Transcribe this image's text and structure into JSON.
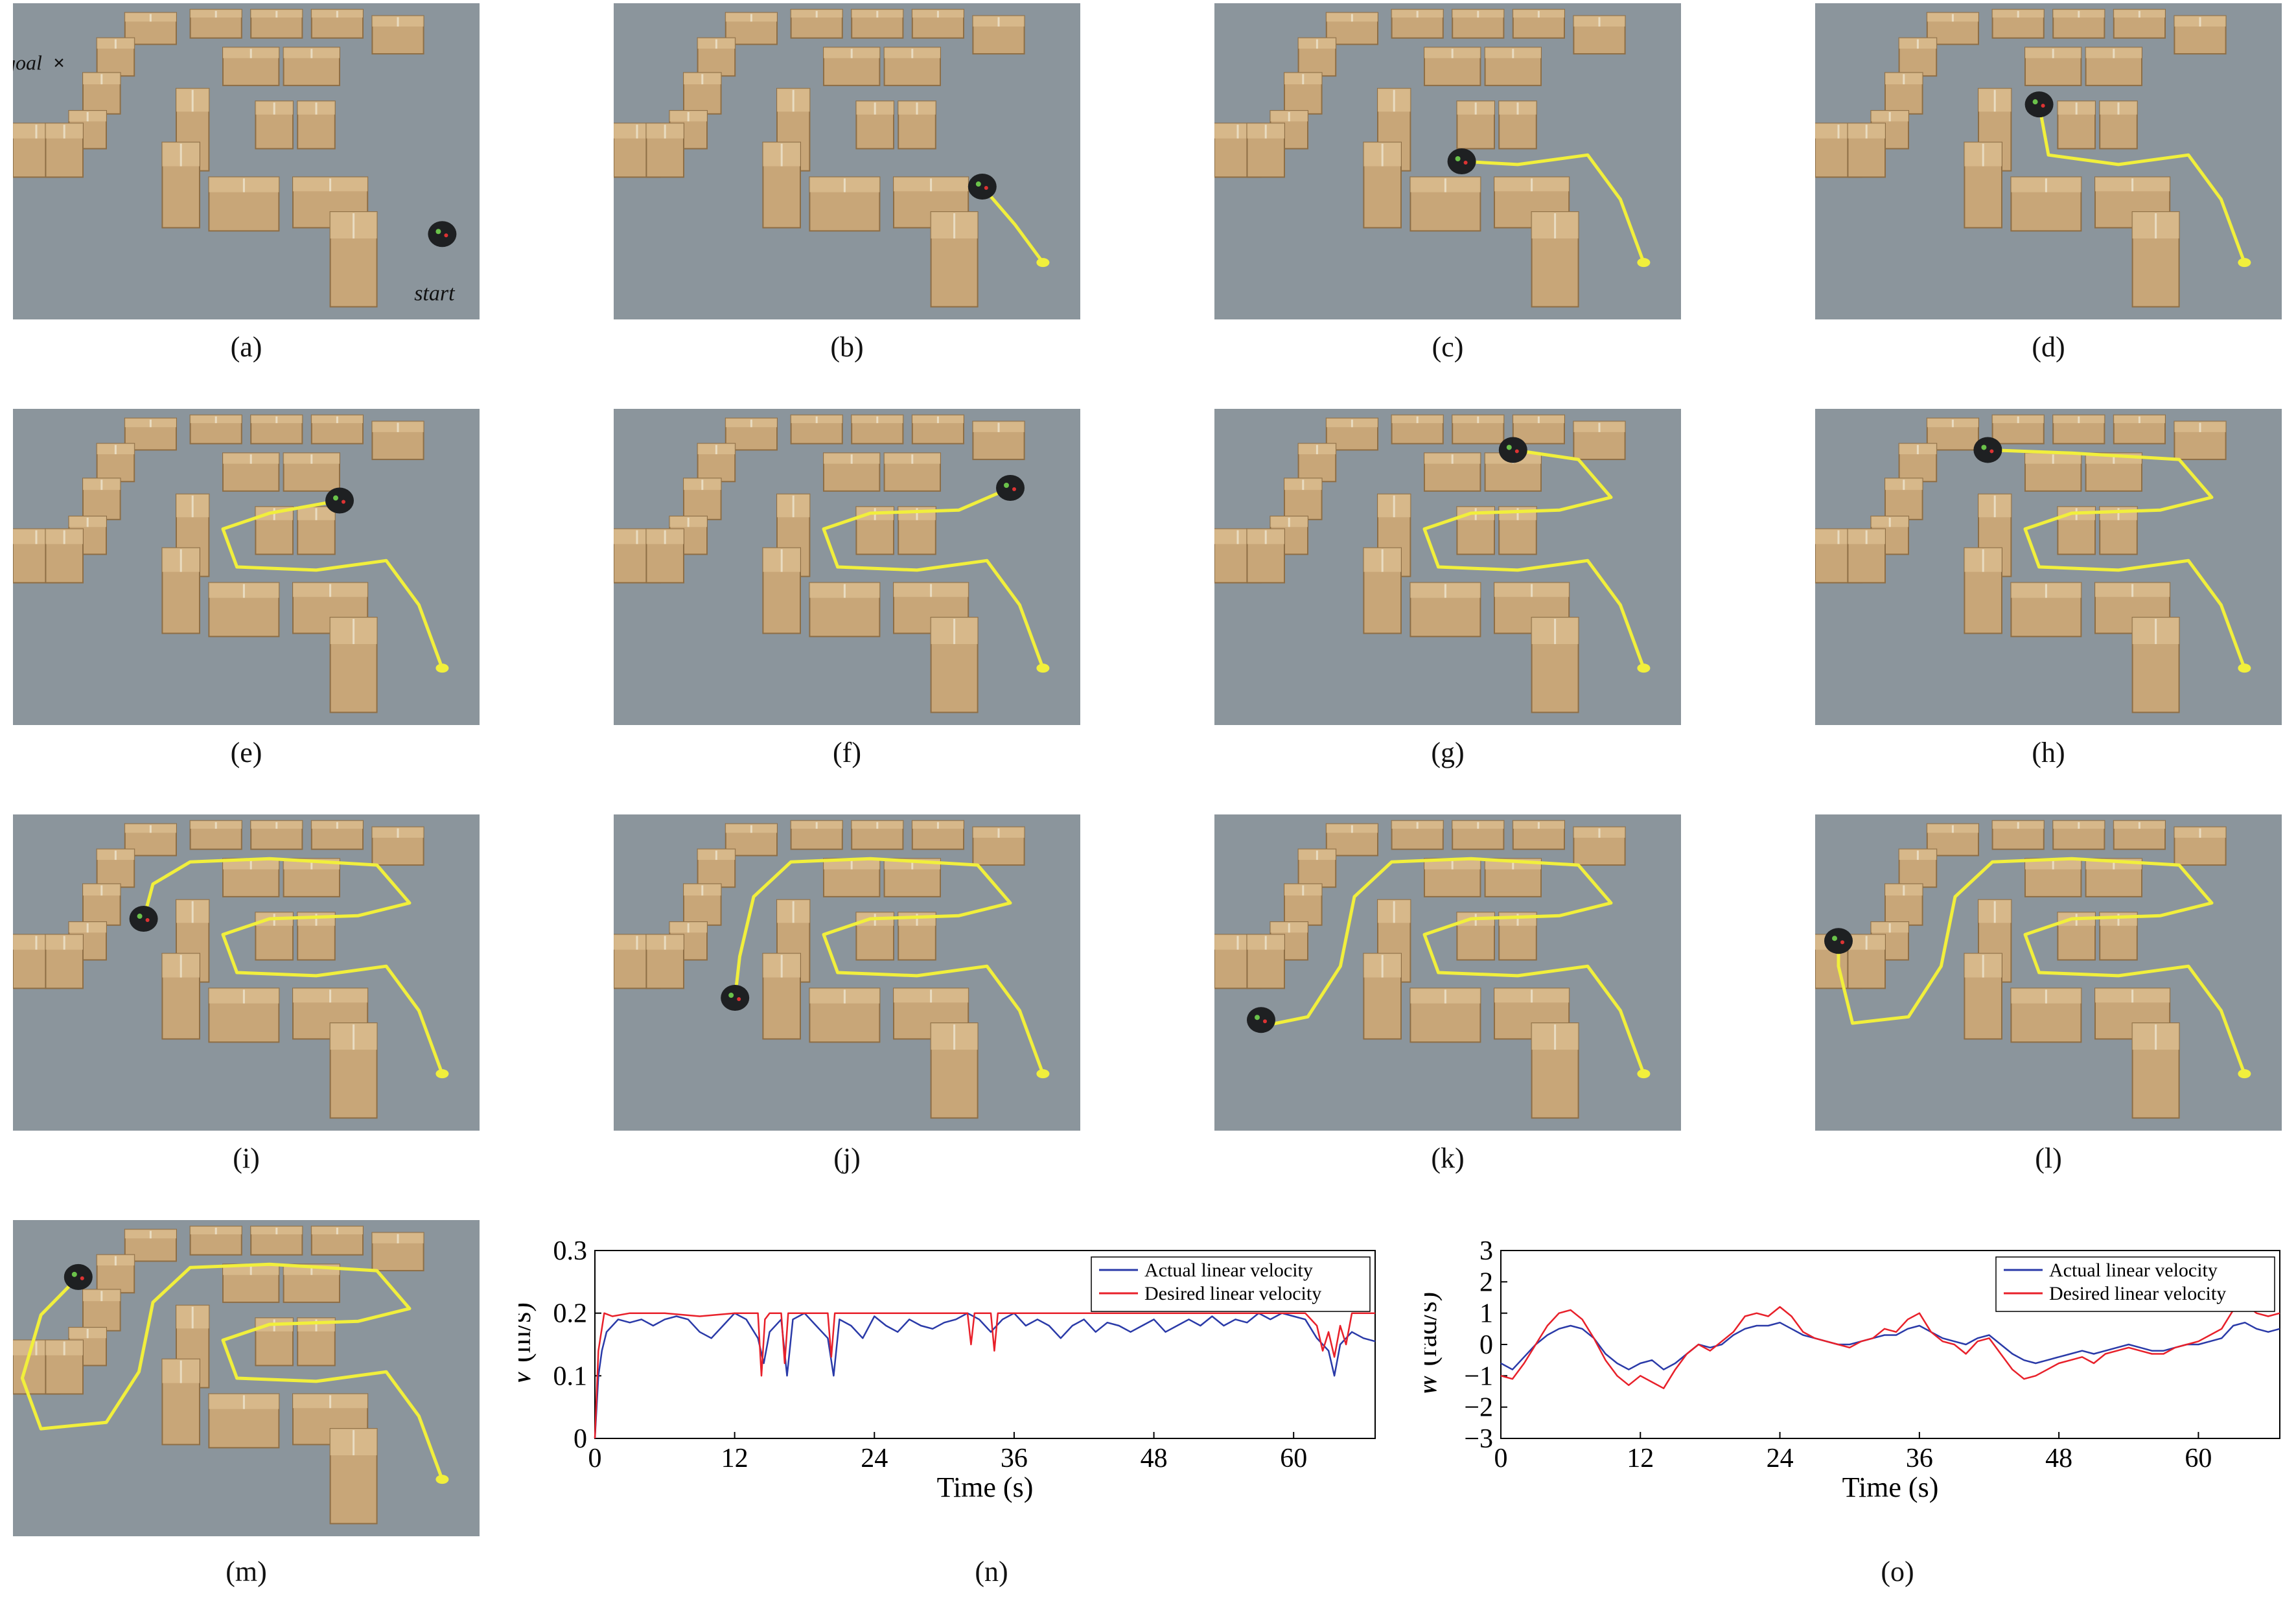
{
  "photo_panels": [
    {
      "label": "(a)",
      "goal_label": "goal",
      "goal_marker": "×",
      "start_label": "start",
      "robot": [
        0.92,
        0.73
      ],
      "path": []
    },
    {
      "label": "(b)",
      "robot": [
        0.79,
        0.58
      ],
      "path": [
        [
          0.92,
          0.82
        ],
        [
          0.86,
          0.7
        ],
        [
          0.79,
          0.58
        ]
      ]
    },
    {
      "label": "(c)",
      "robot": [
        0.53,
        0.5
      ],
      "path": [
        [
          0.92,
          0.82
        ],
        [
          0.87,
          0.62
        ],
        [
          0.8,
          0.48
        ],
        [
          0.65,
          0.51
        ],
        [
          0.53,
          0.5
        ]
      ]
    },
    {
      "label": "(d)",
      "robot": [
        0.48,
        0.32
      ],
      "path": [
        [
          0.92,
          0.82
        ],
        [
          0.87,
          0.62
        ],
        [
          0.8,
          0.48
        ],
        [
          0.65,
          0.51
        ],
        [
          0.5,
          0.48
        ],
        [
          0.48,
          0.32
        ]
      ]
    },
    {
      "label": "(e)",
      "robot": [
        0.7,
        0.29
      ],
      "path": [
        [
          0.92,
          0.82
        ],
        [
          0.87,
          0.62
        ],
        [
          0.8,
          0.48
        ],
        [
          0.65,
          0.51
        ],
        [
          0.48,
          0.5
        ],
        [
          0.45,
          0.38
        ],
        [
          0.55,
          0.33
        ],
        [
          0.7,
          0.29
        ]
      ]
    },
    {
      "label": "(f)",
      "robot": [
        0.85,
        0.25
      ],
      "path": [
        [
          0.92,
          0.82
        ],
        [
          0.87,
          0.62
        ],
        [
          0.8,
          0.48
        ],
        [
          0.65,
          0.51
        ],
        [
          0.48,
          0.5
        ],
        [
          0.45,
          0.38
        ],
        [
          0.55,
          0.33
        ],
        [
          0.74,
          0.32
        ],
        [
          0.85,
          0.25
        ]
      ]
    },
    {
      "label": "(g)",
      "robot": [
        0.64,
        0.13
      ],
      "path": [
        [
          0.92,
          0.82
        ],
        [
          0.87,
          0.62
        ],
        [
          0.8,
          0.48
        ],
        [
          0.65,
          0.51
        ],
        [
          0.48,
          0.5
        ],
        [
          0.45,
          0.38
        ],
        [
          0.55,
          0.33
        ],
        [
          0.74,
          0.32
        ],
        [
          0.85,
          0.28
        ],
        [
          0.78,
          0.16
        ],
        [
          0.64,
          0.13
        ]
      ]
    },
    {
      "label": "(h)",
      "robot": [
        0.37,
        0.13
      ],
      "path": [
        [
          0.92,
          0.82
        ],
        [
          0.87,
          0.62
        ],
        [
          0.8,
          0.48
        ],
        [
          0.65,
          0.51
        ],
        [
          0.48,
          0.5
        ],
        [
          0.45,
          0.38
        ],
        [
          0.55,
          0.33
        ],
        [
          0.74,
          0.32
        ],
        [
          0.85,
          0.28
        ],
        [
          0.78,
          0.16
        ],
        [
          0.55,
          0.14
        ],
        [
          0.37,
          0.13
        ]
      ]
    },
    {
      "label": "(i)",
      "robot": [
        0.28,
        0.33
      ],
      "path": [
        [
          0.92,
          0.82
        ],
        [
          0.87,
          0.62
        ],
        [
          0.8,
          0.48
        ],
        [
          0.65,
          0.51
        ],
        [
          0.48,
          0.5
        ],
        [
          0.45,
          0.38
        ],
        [
          0.55,
          0.33
        ],
        [
          0.74,
          0.32
        ],
        [
          0.85,
          0.28
        ],
        [
          0.78,
          0.16
        ],
        [
          0.55,
          0.14
        ],
        [
          0.38,
          0.15
        ],
        [
          0.3,
          0.22
        ],
        [
          0.28,
          0.33
        ]
      ]
    },
    {
      "label": "(j)",
      "robot": [
        0.26,
        0.58
      ],
      "path": [
        [
          0.92,
          0.82
        ],
        [
          0.87,
          0.62
        ],
        [
          0.8,
          0.48
        ],
        [
          0.65,
          0.51
        ],
        [
          0.48,
          0.5
        ],
        [
          0.45,
          0.38
        ],
        [
          0.55,
          0.33
        ],
        [
          0.74,
          0.32
        ],
        [
          0.85,
          0.28
        ],
        [
          0.78,
          0.16
        ],
        [
          0.55,
          0.14
        ],
        [
          0.38,
          0.15
        ],
        [
          0.3,
          0.26
        ],
        [
          0.27,
          0.45
        ],
        [
          0.26,
          0.58
        ]
      ]
    },
    {
      "label": "(k)",
      "robot": [
        0.1,
        0.65
      ],
      "path": [
        [
          0.92,
          0.82
        ],
        [
          0.87,
          0.62
        ],
        [
          0.8,
          0.48
        ],
        [
          0.65,
          0.51
        ],
        [
          0.48,
          0.5
        ],
        [
          0.45,
          0.38
        ],
        [
          0.55,
          0.33
        ],
        [
          0.74,
          0.32
        ],
        [
          0.85,
          0.28
        ],
        [
          0.78,
          0.16
        ],
        [
          0.55,
          0.14
        ],
        [
          0.38,
          0.15
        ],
        [
          0.3,
          0.26
        ],
        [
          0.27,
          0.48
        ],
        [
          0.2,
          0.64
        ],
        [
          0.1,
          0.67
        ]
      ]
    },
    {
      "label": "(l)",
      "robot": [
        0.05,
        0.4
      ],
      "path": [
        [
          0.92,
          0.82
        ],
        [
          0.87,
          0.62
        ],
        [
          0.8,
          0.48
        ],
        [
          0.65,
          0.51
        ],
        [
          0.48,
          0.5
        ],
        [
          0.45,
          0.38
        ],
        [
          0.55,
          0.33
        ],
        [
          0.74,
          0.32
        ],
        [
          0.85,
          0.28
        ],
        [
          0.78,
          0.16
        ],
        [
          0.55,
          0.14
        ],
        [
          0.38,
          0.15
        ],
        [
          0.3,
          0.26
        ],
        [
          0.27,
          0.48
        ],
        [
          0.2,
          0.64
        ],
        [
          0.08,
          0.66
        ],
        [
          0.05,
          0.48
        ],
        [
          0.05,
          0.4
        ]
      ]
    },
    {
      "label": "(m)",
      "robot": [
        0.14,
        0.18
      ],
      "path": [
        [
          0.92,
          0.82
        ],
        [
          0.87,
          0.62
        ],
        [
          0.8,
          0.48
        ],
        [
          0.65,
          0.51
        ],
        [
          0.48,
          0.5
        ],
        [
          0.45,
          0.38
        ],
        [
          0.55,
          0.33
        ],
        [
          0.74,
          0.32
        ],
        [
          0.85,
          0.28
        ],
        [
          0.78,
          0.16
        ],
        [
          0.55,
          0.14
        ],
        [
          0.38,
          0.15
        ],
        [
          0.3,
          0.26
        ],
        [
          0.27,
          0.48
        ],
        [
          0.2,
          0.64
        ],
        [
          0.06,
          0.66
        ],
        [
          0.02,
          0.5
        ],
        [
          0.06,
          0.3
        ],
        [
          0.14,
          0.18
        ]
      ]
    }
  ],
  "chart_data": [
    {
      "label": "(n)",
      "type": "line",
      "xlabel": "Time (s)",
      "ylabel_var": "V",
      "ylabel_unit": "(m/s)",
      "xlim": [
        0,
        67
      ],
      "ylim": [
        0,
        0.3
      ],
      "xticks": [
        0,
        12,
        24,
        36,
        48,
        60
      ],
      "yticks": [
        0,
        0.1,
        0.2,
        0.3
      ],
      "ytick_labels": [
        "0",
        "0.1",
        "0.2",
        "0.3"
      ],
      "legend_position": "top-right",
      "series": [
        {
          "name": "Actual linear velocity",
          "color": "#2a3aa8",
          "x": [
            0,
            0.3,
            0.6,
            1,
            1.5,
            2,
            3,
            4,
            5,
            6,
            7,
            8,
            9,
            10,
            11,
            12,
            13,
            14,
            14.5,
            15,
            16,
            16.5,
            17,
            18,
            19,
            20,
            20.5,
            21,
            22,
            23,
            24,
            25,
            26,
            27,
            28,
            29,
            30,
            31,
            32,
            33,
            34,
            35,
            36,
            37,
            38,
            39,
            40,
            41,
            42,
            43,
            44,
            45,
            46,
            47,
            48,
            49,
            50,
            51,
            52,
            53,
            54,
            55,
            56,
            57,
            58,
            59,
            60,
            61,
            62,
            63,
            63.5,
            64,
            65,
            66,
            67
          ],
          "y": [
            0.0,
            0.1,
            0.14,
            0.17,
            0.18,
            0.19,
            0.185,
            0.19,
            0.18,
            0.19,
            0.195,
            0.19,
            0.17,
            0.16,
            0.18,
            0.2,
            0.19,
            0.16,
            0.12,
            0.17,
            0.19,
            0.1,
            0.19,
            0.2,
            0.18,
            0.16,
            0.1,
            0.19,
            0.18,
            0.16,
            0.195,
            0.18,
            0.17,
            0.19,
            0.18,
            0.175,
            0.185,
            0.19,
            0.2,
            0.19,
            0.17,
            0.19,
            0.2,
            0.18,
            0.19,
            0.18,
            0.16,
            0.18,
            0.19,
            0.17,
            0.185,
            0.18,
            0.17,
            0.18,
            0.19,
            0.17,
            0.18,
            0.19,
            0.18,
            0.195,
            0.18,
            0.19,
            0.185,
            0.2,
            0.19,
            0.2,
            0.195,
            0.19,
            0.16,
            0.14,
            0.1,
            0.15,
            0.17,
            0.16,
            0.155
          ]
        },
        {
          "name": "Desired linear velocity",
          "color": "#e8202a",
          "x": [
            0,
            0.3,
            0.8,
            1.5,
            3,
            6,
            9,
            12,
            14,
            14.3,
            14.6,
            15,
            16,
            16.3,
            16.6,
            20,
            20.3,
            20.6,
            21,
            24,
            30,
            32,
            32.3,
            32.6,
            33,
            34,
            34.3,
            34.6,
            36,
            40,
            48,
            56,
            60,
            61,
            62,
            62.5,
            63,
            63.5,
            64,
            64.5,
            65,
            67
          ],
          "y": [
            0.0,
            0.14,
            0.2,
            0.195,
            0.2,
            0.2,
            0.195,
            0.2,
            0.2,
            0.1,
            0.19,
            0.2,
            0.2,
            0.12,
            0.2,
            0.2,
            0.13,
            0.2,
            0.2,
            0.2,
            0.2,
            0.2,
            0.15,
            0.2,
            0.2,
            0.2,
            0.14,
            0.2,
            0.2,
            0.2,
            0.2,
            0.2,
            0.2,
            0.2,
            0.18,
            0.14,
            0.17,
            0.13,
            0.18,
            0.15,
            0.2,
            0.2
          ]
        }
      ]
    },
    {
      "label": "(o)",
      "type": "line",
      "xlabel": "Time (s)",
      "ylabel_var": "W",
      "ylabel_unit": "(rad/s)",
      "xlim": [
        0,
        67
      ],
      "ylim": [
        -3,
        3
      ],
      "xticks": [
        0,
        12,
        24,
        36,
        48,
        60
      ],
      "yticks": [
        -3,
        -2,
        -1,
        0,
        1,
        2,
        3
      ],
      "ytick_labels": [
        "−3",
        "−2",
        "−1",
        "0",
        "1",
        "2",
        "3"
      ],
      "legend_position": "top-right",
      "series": [
        {
          "name": "Actual linear velocity",
          "color": "#2a3aa8",
          "x": [
            0,
            1,
            2,
            3,
            4,
            5,
            6,
            7,
            8,
            9,
            10,
            11,
            12,
            13,
            14,
            15,
            16,
            17,
            18,
            19,
            20,
            21,
            22,
            23,
            24,
            25,
            26,
            27,
            28,
            29,
            30,
            31,
            32,
            33,
            34,
            35,
            36,
            37,
            38,
            39,
            40,
            41,
            42,
            43,
            44,
            45,
            46,
            47,
            48,
            49,
            50,
            51,
            52,
            53,
            54,
            55,
            56,
            57,
            58,
            59,
            60,
            61,
            62,
            63,
            64,
            65,
            66,
            67
          ],
          "y": [
            -0.6,
            -0.8,
            -0.4,
            0.0,
            0.3,
            0.5,
            0.6,
            0.5,
            0.2,
            -0.3,
            -0.6,
            -0.8,
            -0.6,
            -0.5,
            -0.8,
            -0.6,
            -0.3,
            0.0,
            -0.1,
            0.0,
            0.3,
            0.5,
            0.6,
            0.6,
            0.7,
            0.5,
            0.3,
            0.2,
            0.1,
            0.0,
            0.0,
            0.1,
            0.2,
            0.3,
            0.3,
            0.5,
            0.6,
            0.4,
            0.2,
            0.1,
            0.0,
            0.2,
            0.3,
            0.0,
            -0.3,
            -0.5,
            -0.6,
            -0.5,
            -0.4,
            -0.3,
            -0.2,
            -0.3,
            -0.2,
            -0.1,
            0.0,
            -0.1,
            -0.2,
            -0.2,
            -0.1,
            0.0,
            0.0,
            0.1,
            0.2,
            0.6,
            0.7,
            0.5,
            0.4,
            0.5
          ]
        },
        {
          "name": "Desired linear velocity",
          "color": "#e8202a",
          "x": [
            0,
            1,
            2,
            3,
            4,
            5,
            6,
            7,
            8,
            9,
            10,
            11,
            12,
            13,
            14,
            15,
            16,
            17,
            18,
            19,
            20,
            21,
            22,
            23,
            24,
            25,
            26,
            27,
            28,
            29,
            30,
            31,
            32,
            33,
            34,
            35,
            36,
            37,
            38,
            39,
            40,
            41,
            42,
            43,
            44,
            45,
            46,
            47,
            48,
            49,
            50,
            51,
            52,
            53,
            54,
            55,
            56,
            57,
            58,
            59,
            60,
            61,
            62,
            63,
            64,
            65,
            66,
            67
          ],
          "y": [
            -1.0,
            -1.1,
            -0.6,
            0.0,
            0.6,
            1.0,
            1.1,
            0.8,
            0.2,
            -0.5,
            -1.0,
            -1.3,
            -1.0,
            -1.2,
            -1.4,
            -0.8,
            -0.3,
            0.0,
            -0.2,
            0.1,
            0.4,
            0.9,
            1.0,
            0.9,
            1.2,
            0.9,
            0.4,
            0.2,
            0.1,
            0.0,
            -0.1,
            0.1,
            0.2,
            0.5,
            0.4,
            0.8,
            1.0,
            0.4,
            0.1,
            0.0,
            -0.3,
            0.1,
            0.2,
            -0.3,
            -0.8,
            -1.1,
            -1.0,
            -0.8,
            -0.6,
            -0.5,
            -0.4,
            -0.6,
            -0.3,
            -0.2,
            -0.1,
            -0.2,
            -0.3,
            -0.3,
            -0.1,
            0.0,
            0.1,
            0.3,
            0.5,
            1.1,
            1.3,
            1.0,
            0.9,
            1.0
          ]
        }
      ]
    }
  ],
  "colors": {
    "floor": "#8b959c",
    "box": "#c8a678",
    "box_edge": "#8e6e45",
    "path": "#f1ef3c",
    "robot": "#1e2022"
  }
}
